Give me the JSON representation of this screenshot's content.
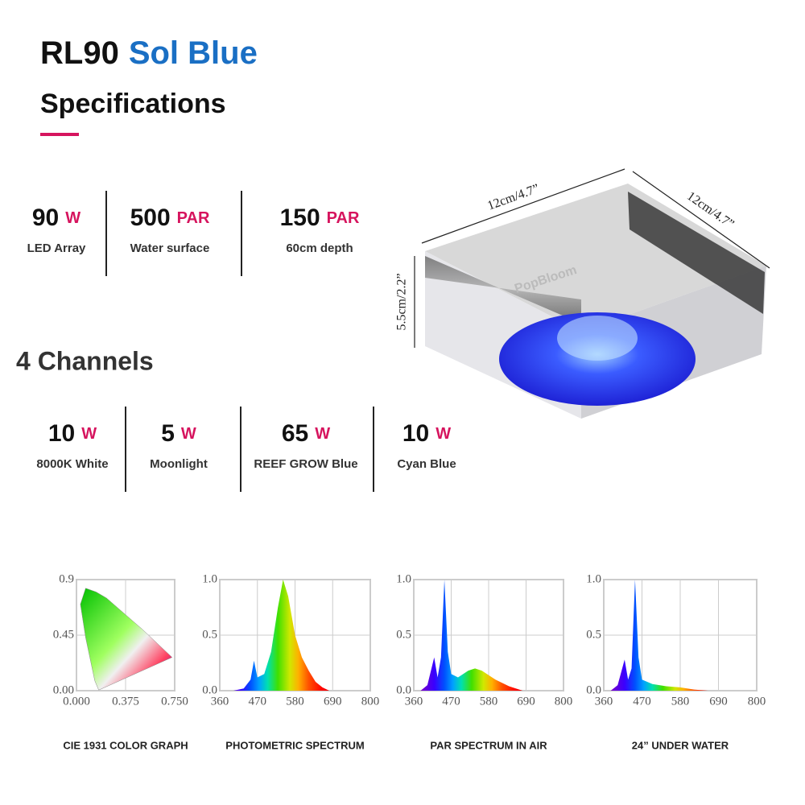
{
  "header": {
    "model": "RL90",
    "name": "Sol Blue",
    "subtitle": "Specifications"
  },
  "specs": [
    {
      "value": 90,
      "unit": "W",
      "label": "LED Array"
    },
    {
      "value": 500,
      "unit": "PAR",
      "label": "Water surface"
    },
    {
      "value": 150,
      "unit": "PAR",
      "label": "60cm depth"
    }
  ],
  "channels_title": "4 Channels",
  "channels": [
    {
      "value": 10,
      "unit": "W",
      "label": "8000K White"
    },
    {
      "value": 5,
      "unit": "W",
      "label": "Moonlight"
    },
    {
      "value": 65,
      "unit": "W",
      "label": "REEF GROW Blue"
    },
    {
      "value": 10,
      "unit": "W",
      "label": "Cyan Blue"
    }
  ],
  "product": {
    "brand": "PopBloom",
    "width": "12cm/4.7”",
    "depth": "12cm/4.7”",
    "height": "5.5cm/2.2”"
  },
  "chart_data": [
    {
      "type": "area",
      "title": "CIE 1931 COLOR GRAPH",
      "x": [
        0.17,
        0.14,
        0.07,
        0.03,
        0.07,
        0.15,
        0.23,
        0.37,
        0.5,
        0.73,
        0.17
      ],
      "values": [
        0.005,
        0.08,
        0.43,
        0.7,
        0.83,
        0.8,
        0.75,
        0.62,
        0.5,
        0.27,
        0.005
      ],
      "xlim": [
        0,
        0.75
      ],
      "xticks": [
        {
          "value": 0,
          "label": "0.000"
        },
        0.375,
        {
          "value": 0.75,
          "label": "0.750"
        }
      ],
      "ylim": [
        0,
        0.9
      ],
      "yticks": [
        {
          "value": 0,
          "label": "0.00"
        },
        0.45,
        0.9
      ],
      "grid": true
    },
    {
      "type": "area",
      "title": "PHOTOMETRIC SPECTRUM",
      "x": [
        400,
        430,
        450,
        460,
        470,
        490,
        510,
        530,
        545,
        560,
        580,
        600,
        620,
        640,
        660,
        680
      ],
      "values": [
        0,
        0.02,
        0.1,
        0.27,
        0.12,
        0.15,
        0.35,
        0.75,
        1.0,
        0.85,
        0.5,
        0.3,
        0.18,
        0.08,
        0.03,
        0
      ],
      "xlim": [
        360,
        800
      ],
      "xticks": [
        360,
        470,
        580,
        690,
        800
      ],
      "ylim": [
        0,
        1
      ],
      "yticks": [
        {
          "value": 0,
          "label": "0.0"
        },
        0.5,
        {
          "value": 1,
          "label": "1.0"
        }
      ],
      "grid": true
    },
    {
      "type": "area",
      "title": "PAR SPECTRUM IN AIR",
      "x": [
        380,
        400,
        420,
        430,
        440,
        450,
        460,
        470,
        490,
        520,
        540,
        560,
        600,
        640,
        680
      ],
      "values": [
        0,
        0.05,
        0.3,
        0.12,
        0.3,
        1.0,
        0.35,
        0.15,
        0.12,
        0.18,
        0.2,
        0.18,
        0.1,
        0.04,
        0
      ],
      "xlim": [
        360,
        800
      ],
      "xticks": [
        360,
        470,
        580,
        690,
        800
      ],
      "ylim": [
        0,
        1
      ],
      "yticks": [
        {
          "value": 0,
          "label": "0.0"
        },
        0.5,
        {
          "value": 1,
          "label": "1.0"
        }
      ],
      "grid": true
    },
    {
      "type": "area",
      "title": "24”  UNDER WATER",
      "x": [
        380,
        400,
        420,
        430,
        440,
        450,
        460,
        470,
        500,
        540,
        580,
        620,
        660
      ],
      "values": [
        0,
        0.05,
        0.28,
        0.1,
        0.2,
        1.0,
        0.3,
        0.1,
        0.06,
        0.04,
        0.03,
        0.01,
        0
      ],
      "xlim": [
        360,
        800
      ],
      "xticks": [
        360,
        470,
        580,
        690,
        800
      ],
      "ylim": [
        0,
        1
      ],
      "yticks": [
        {
          "value": 0,
          "label": "0.0"
        },
        0.5,
        {
          "value": 1,
          "label": "1.0"
        }
      ],
      "grid": true
    }
  ]
}
